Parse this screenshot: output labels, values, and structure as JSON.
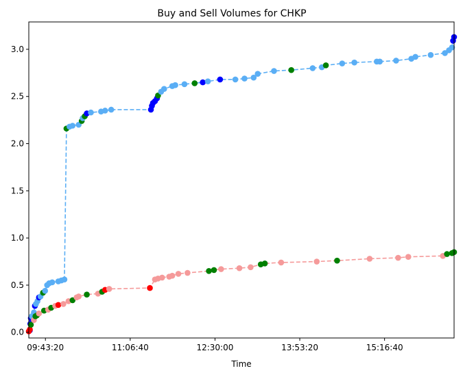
{
  "chart_data": {
    "type": "line",
    "title": "Buy and Sell Volumes for CHKP",
    "xlabel": "Time",
    "ylabel": "",
    "grid": false,
    "legend": "none",
    "xlim": [
      "09:27:00",
      "16:25:00"
    ],
    "ylim": [
      -0.06,
      3.29
    ],
    "x_ticks": [
      "09:43:20",
      "11:06:40",
      "12:30:00",
      "13:53:20",
      "15:16:40"
    ],
    "y_ticks": [
      "0.0",
      "0.5",
      "1.0",
      "1.5",
      "2.0",
      "2.5",
      "3.0"
    ],
    "colors": {
      "buy_line": "#5aaef5",
      "sell_line": "#f59a9a",
      "buy_emphasis": "#0000ff",
      "sell_emphasis": "#ff0000",
      "shared": "#008000"
    },
    "series": [
      {
        "line_color": "#5aaef5",
        "points": [
          {
            "x": "09:28:00",
            "y": 0.02,
            "color": "#0000ff"
          },
          {
            "x": "09:28:30",
            "y": 0.09,
            "color": "#0000ff"
          },
          {
            "x": "09:29:00",
            "y": 0.15,
            "color": "#0000ff"
          },
          {
            "x": "09:30:00",
            "y": 0.17,
            "color": "#5aaef5"
          },
          {
            "x": "09:32:00",
            "y": 0.21,
            "color": "#5aaef5"
          },
          {
            "x": "09:33:00",
            "y": 0.28,
            "color": "#0000ff"
          },
          {
            "x": "09:34:00",
            "y": 0.3,
            "color": "#5aaef5"
          },
          {
            "x": "09:35:30",
            "y": 0.33,
            "color": "#5aaef5"
          },
          {
            "x": "09:37:00",
            "y": 0.37,
            "color": "#0000ff"
          },
          {
            "x": "09:38:30",
            "y": 0.38,
            "color": "#5aaef5"
          },
          {
            "x": "09:41:00",
            "y": 0.42,
            "color": "#008000"
          },
          {
            "x": "09:43:00",
            "y": 0.44,
            "color": "#5aaef5"
          },
          {
            "x": "09:45:00",
            "y": 0.5,
            "color": "#5aaef5"
          },
          {
            "x": "09:47:00",
            "y": 0.52,
            "color": "#5aaef5"
          },
          {
            "x": "09:50:00",
            "y": 0.53,
            "color": "#5aaef5"
          },
          {
            "x": "09:56:00",
            "y": 0.54,
            "color": "#5aaef5"
          },
          {
            "x": "09:59:00",
            "y": 0.55,
            "color": "#5aaef5"
          },
          {
            "x": "10:02:00",
            "y": 0.56,
            "color": "#5aaef5"
          },
          {
            "x": "10:04:00",
            "y": 2.16,
            "color": "#008000"
          },
          {
            "x": "10:07:00",
            "y": 2.18,
            "color": "#5aaef5"
          },
          {
            "x": "10:10:00",
            "y": 2.19,
            "color": "#5aaef5"
          },
          {
            "x": "10:16:00",
            "y": 2.2,
            "color": "#5aaef5"
          },
          {
            "x": "10:19:00",
            "y": 2.24,
            "color": "#008000"
          },
          {
            "x": "10:20:00",
            "y": 2.27,
            "color": "#5aaef5"
          },
          {
            "x": "10:22:00",
            "y": 2.29,
            "color": "#008000"
          },
          {
            "x": "10:24:00",
            "y": 2.32,
            "color": "#0000ff"
          },
          {
            "x": "10:28:00",
            "y": 2.33,
            "color": "#5aaef5"
          },
          {
            "x": "10:38:00",
            "y": 2.34,
            "color": "#5aaef5"
          },
          {
            "x": "10:42:00",
            "y": 2.35,
            "color": "#5aaef5"
          },
          {
            "x": "10:48:00",
            "y": 2.36,
            "color": "#5aaef5"
          },
          {
            "x": "11:27:00",
            "y": 2.36,
            "color": "#0000ff"
          },
          {
            "x": "11:28:00",
            "y": 2.4,
            "color": "#0000ff"
          },
          {
            "x": "11:29:00",
            "y": 2.43,
            "color": "#0000ff"
          },
          {
            "x": "11:31:00",
            "y": 2.45,
            "color": "#0000ff"
          },
          {
            "x": "11:33:00",
            "y": 2.48,
            "color": "#0000ff"
          },
          {
            "x": "11:34:00",
            "y": 2.51,
            "color": "#008000"
          },
          {
            "x": "11:37:00",
            "y": 2.55,
            "color": "#5aaef5"
          },
          {
            "x": "11:40:00",
            "y": 2.58,
            "color": "#5aaef5"
          },
          {
            "x": "11:48:00",
            "y": 2.61,
            "color": "#5aaef5"
          },
          {
            "x": "11:51:00",
            "y": 2.62,
            "color": "#5aaef5"
          },
          {
            "x": "12:00:00",
            "y": 2.63,
            "color": "#5aaef5"
          },
          {
            "x": "12:10:00",
            "y": 2.64,
            "color": "#008000"
          },
          {
            "x": "12:18:00",
            "y": 2.65,
            "color": "#0000ff"
          },
          {
            "x": "12:23:00",
            "y": 2.66,
            "color": "#5aaef5"
          },
          {
            "x": "12:35:00",
            "y": 2.68,
            "color": "#0000ff"
          },
          {
            "x": "12:50:00",
            "y": 2.68,
            "color": "#5aaef5"
          },
          {
            "x": "12:59:00",
            "y": 2.69,
            "color": "#5aaef5"
          },
          {
            "x": "13:08:00",
            "y": 2.7,
            "color": "#5aaef5"
          },
          {
            "x": "13:12:00",
            "y": 2.74,
            "color": "#5aaef5"
          },
          {
            "x": "13:28:00",
            "y": 2.77,
            "color": "#5aaef5"
          },
          {
            "x": "13:45:00",
            "y": 2.78,
            "color": "#008000"
          },
          {
            "x": "14:06:00",
            "y": 2.8,
            "color": "#5aaef5"
          },
          {
            "x": "14:15:00",
            "y": 2.81,
            "color": "#5aaef5"
          },
          {
            "x": "14:19:00",
            "y": 2.83,
            "color": "#008000"
          },
          {
            "x": "14:35:00",
            "y": 2.85,
            "color": "#5aaef5"
          },
          {
            "x": "14:47:00",
            "y": 2.86,
            "color": "#5aaef5"
          },
          {
            "x": "15:09:00",
            "y": 2.87,
            "color": "#5aaef5"
          },
          {
            "x": "15:12:00",
            "y": 2.87,
            "color": "#5aaef5"
          },
          {
            "x": "15:28:00",
            "y": 2.88,
            "color": "#5aaef5"
          },
          {
            "x": "15:43:00",
            "y": 2.9,
            "color": "#5aaef5"
          },
          {
            "x": "15:47:00",
            "y": 2.92,
            "color": "#5aaef5"
          },
          {
            "x": "16:02:00",
            "y": 2.94,
            "color": "#5aaef5"
          },
          {
            "x": "16:16:00",
            "y": 2.96,
            "color": "#5aaef5"
          },
          {
            "x": "16:20:00",
            "y": 2.99,
            "color": "#5aaef5"
          },
          {
            "x": "16:23:00",
            "y": 3.02,
            "color": "#5aaef5"
          },
          {
            "x": "16:24:00",
            "y": 3.09,
            "color": "#0000ff"
          },
          {
            "x": "16:25:00",
            "y": 3.13,
            "color": "#0000ff"
          }
        ]
      },
      {
        "line_color": "#f59a9a",
        "points": [
          {
            "x": "09:27:00",
            "y": 0.01,
            "color": "#ff0000"
          },
          {
            "x": "09:28:00",
            "y": 0.03,
            "color": "#ff0000"
          },
          {
            "x": "09:29:00",
            "y": 0.08,
            "color": "#008000"
          },
          {
            "x": "09:32:00",
            "y": 0.13,
            "color": "#f59a9a"
          },
          {
            "x": "09:33:30",
            "y": 0.17,
            "color": "#008000"
          },
          {
            "x": "09:35:00",
            "y": 0.18,
            "color": "#008000"
          },
          {
            "x": "09:37:00",
            "y": 0.2,
            "color": "#f59a9a"
          },
          {
            "x": "09:42:00",
            "y": 0.23,
            "color": "#008000"
          },
          {
            "x": "09:46:00",
            "y": 0.24,
            "color": "#f59a9a"
          },
          {
            "x": "09:49:00",
            "y": 0.26,
            "color": "#008000"
          },
          {
            "x": "09:53:00",
            "y": 0.28,
            "color": "#f59a9a"
          },
          {
            "x": "09:56:00",
            "y": 0.29,
            "color": "#ff0000"
          },
          {
            "x": "10:01:00",
            "y": 0.3,
            "color": "#f59a9a"
          },
          {
            "x": "10:06:00",
            "y": 0.33,
            "color": "#f59a9a"
          },
          {
            "x": "10:10:00",
            "y": 0.34,
            "color": "#008000"
          },
          {
            "x": "10:14:00",
            "y": 0.37,
            "color": "#f59a9a"
          },
          {
            "x": "10:16:00",
            "y": 0.38,
            "color": "#f59a9a"
          },
          {
            "x": "10:24:00",
            "y": 0.4,
            "color": "#008000"
          },
          {
            "x": "10:35:00",
            "y": 0.41,
            "color": "#f59a9a"
          },
          {
            "x": "10:39:00",
            "y": 0.43,
            "color": "#008000"
          },
          {
            "x": "10:42:00",
            "y": 0.45,
            "color": "#ff0000"
          },
          {
            "x": "10:46:00",
            "y": 0.46,
            "color": "#f59a9a"
          },
          {
            "x": "11:26:00",
            "y": 0.47,
            "color": "#ff0000"
          },
          {
            "x": "11:31:00",
            "y": 0.56,
            "color": "#f59a9a"
          },
          {
            "x": "11:34:00",
            "y": 0.57,
            "color": "#f59a9a"
          },
          {
            "x": "11:38:00",
            "y": 0.58,
            "color": "#f59a9a"
          },
          {
            "x": "11:45:00",
            "y": 0.59,
            "color": "#f59a9a"
          },
          {
            "x": "11:48:00",
            "y": 0.6,
            "color": "#f59a9a"
          },
          {
            "x": "11:54:00",
            "y": 0.62,
            "color": "#f59a9a"
          },
          {
            "x": "12:03:00",
            "y": 0.63,
            "color": "#f59a9a"
          },
          {
            "x": "12:24:00",
            "y": 0.65,
            "color": "#008000"
          },
          {
            "x": "12:29:00",
            "y": 0.66,
            "color": "#008000"
          },
          {
            "x": "12:36:00",
            "y": 0.67,
            "color": "#f59a9a"
          },
          {
            "x": "12:54:00",
            "y": 0.68,
            "color": "#f59a9a"
          },
          {
            "x": "13:05:00",
            "y": 0.69,
            "color": "#f59a9a"
          },
          {
            "x": "13:15:00",
            "y": 0.72,
            "color": "#008000"
          },
          {
            "x": "13:19:00",
            "y": 0.73,
            "color": "#008000"
          },
          {
            "x": "13:35:00",
            "y": 0.74,
            "color": "#f59a9a"
          },
          {
            "x": "14:10:00",
            "y": 0.75,
            "color": "#f59a9a"
          },
          {
            "x": "14:30:00",
            "y": 0.76,
            "color": "#008000"
          },
          {
            "x": "15:02:00",
            "y": 0.78,
            "color": "#f59a9a"
          },
          {
            "x": "15:30:00",
            "y": 0.79,
            "color": "#f59a9a"
          },
          {
            "x": "15:40:00",
            "y": 0.8,
            "color": "#f59a9a"
          },
          {
            "x": "16:14:00",
            "y": 0.81,
            "color": "#f59a9a"
          },
          {
            "x": "16:18:00",
            "y": 0.83,
            "color": "#008000"
          },
          {
            "x": "16:23:00",
            "y": 0.84,
            "color": "#008000"
          },
          {
            "x": "16:25:00",
            "y": 0.85,
            "color": "#008000"
          }
        ]
      }
    ]
  }
}
